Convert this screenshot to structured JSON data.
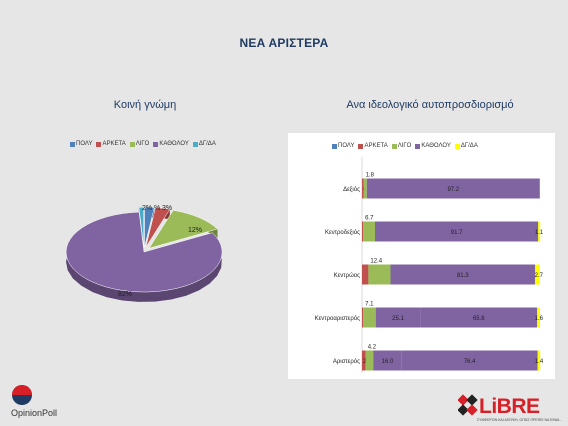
{
  "title": "ΝΕΑ ΑΡΙΣΤΕΡΑ",
  "legend_labels": [
    "ΠΟΛΥ",
    "ΑΡΚΕΤΑ",
    "ΛΙΓΟ",
    "ΚΑΘΟΛΟΥ",
    "ΔΓ/ΔΑ"
  ],
  "colors": {
    "poly": "#4f81bd",
    "arketa": "#c0504d",
    "ligo": "#9bbb59",
    "katholou": "#8064a2",
    "dgda": "#4bacc6",
    "dgda_bar": "#ffff00"
  },
  "logos": {
    "opinionpoll": "OpinionPoll",
    "libre": "LiBRE",
    "libre_tagline": "ΣΥΜΦΕΡΟΝ ΚΑΙ ΑΠΟΨΗ, ΟΠΩΣ ΠΡΕΠΕΙ ΝΑ ΕΙΝΑΙ..."
  },
  "chart_data": [
    {
      "type": "pie",
      "title": "Κοινή γνώμη",
      "legend_position": "top",
      "labels": [
        "ΠΟΛΥ",
        "ΑΡΚΕΤΑ",
        "ΛΙΓΟ",
        "ΚΑΘΟΛΟΥ",
        "ΔΓ/ΔΑ"
      ],
      "values": [
        2,
        3,
        12,
        82,
        1
      ],
      "data_labels": [
        "2%",
        "3%",
        "12%",
        "82%",
        "%"
      ]
    },
    {
      "type": "bar",
      "orientation": "horizontal",
      "stacked": true,
      "title": "Ανα ιδεολογικό αυτοπροσδιορισμό",
      "legend_position": "top",
      "categories": [
        "Δεξιός",
        "Κεντροδεξιός",
        "Κεντρώος",
        "Κεντροαριστερός",
        "Αριστερός"
      ],
      "series": [
        {
          "name": "ΠΟΛΥ",
          "values": [
            0,
            0,
            0,
            0,
            0
          ]
        },
        {
          "name": "ΑΡΚΕΤΑ",
          "values": [
            0.9,
            0.6,
            3.6,
            0.6,
            2.1
          ]
        },
        {
          "name": "ΛΙΓΟ",
          "values": [
            1.8,
            6.7,
            12.4,
            7.1,
            4.2
          ]
        },
        {
          "name": "ΚΑΘΟΛΟΥ",
          "values": [
            97.2,
            91.7,
            81.3,
            25.1,
            16.0
          ]
        },
        {
          "name": "ΔΓ/ΔΑ",
          "values": [
            0,
            1.1,
            2.7,
            65.6,
            76.4
          ]
        },
        {
          "name": "",
          "values": [
            0,
            0,
            0,
            1.6,
            1.4
          ]
        }
      ],
      "xlim": [
        0,
        100
      ]
    }
  ]
}
